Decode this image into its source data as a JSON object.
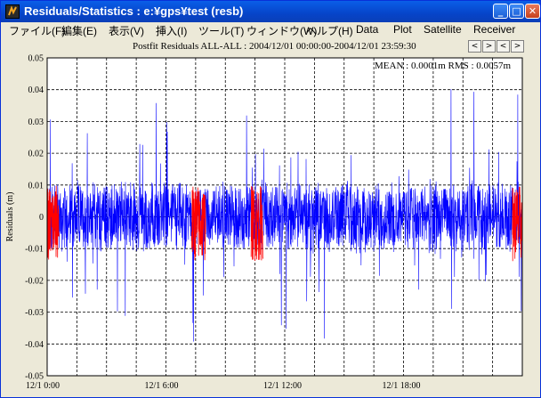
{
  "window": {
    "title": "Residuals/Statistics : e:¥gps¥test (resb)",
    "icon": "app-logo-icon",
    "controls": {
      "minimize": "_",
      "maximize": "□",
      "close": "✕"
    }
  },
  "menu": [
    {
      "label": "ファイル(F)",
      "name": "menu-file"
    },
    {
      "label": "編集(E)",
      "name": "menu-edit"
    },
    {
      "label": "表示(V)",
      "name": "menu-view"
    },
    {
      "label": "挿入(I)",
      "name": "menu-insert"
    },
    {
      "label": "ツール(T)",
      "name": "menu-tools"
    },
    {
      "label": "ウィンドウ(W)",
      "name": "menu-window"
    },
    {
      "label": "ヘルプ(H)",
      "name": "menu-help"
    },
    {
      "label": "Data",
      "name": "menu-data"
    },
    {
      "label": "Plot",
      "name": "menu-plot"
    },
    {
      "label": "Satellite",
      "name": "menu-satellite"
    },
    {
      "label": "Receiver",
      "name": "menu-receiver"
    }
  ],
  "nav_buttons": [
    "<",
    ">",
    "<",
    ">"
  ],
  "stats_text": "MEAN : 0.0001m RMS : 0.0057m",
  "colors": {
    "series_main": "#0000ff",
    "series_highlight": "#ff0000",
    "grid": "#000000"
  },
  "chart_data": {
    "type": "line",
    "title": "Postfit Residuals ALL-ALL : 2004/12/01 00:00:00-2004/12/01 23:59:30",
    "xlabel": "",
    "ylabel": "Residuals (m)",
    "xlim": [
      "2004/12/01 00:00:00",
      "2004/12/01 23:59:30"
    ],
    "ylim": [
      -0.05,
      0.05
    ],
    "yticks": [
      "0.05",
      "0.04",
      "0.03",
      "0.02",
      "0.01",
      "0",
      "-0.01",
      "-0.02",
      "-0.03",
      "-0.04",
      "-0.05"
    ],
    "xticks": [
      "12/1  0:00",
      "12/1  6:00",
      "12/1  12:00",
      "12/1  18:00"
    ],
    "grid": true,
    "series": [
      {
        "color": "blue",
        "style": "dense residual trace",
        "typical_range": [
          -0.015,
          0.015
        ],
        "max_approx": 0.045,
        "min_approx": -0.045
      },
      {
        "color": "red",
        "style": "highlighted segments",
        "hours_approx": [
          [
            0.0,
            0.6
          ],
          [
            7.3,
            8.0
          ],
          [
            10.3,
            10.9
          ],
          [
            23.5,
            24.0
          ]
        ],
        "typical_range": [
          -0.02,
          0.015
        ]
      }
    ]
  }
}
